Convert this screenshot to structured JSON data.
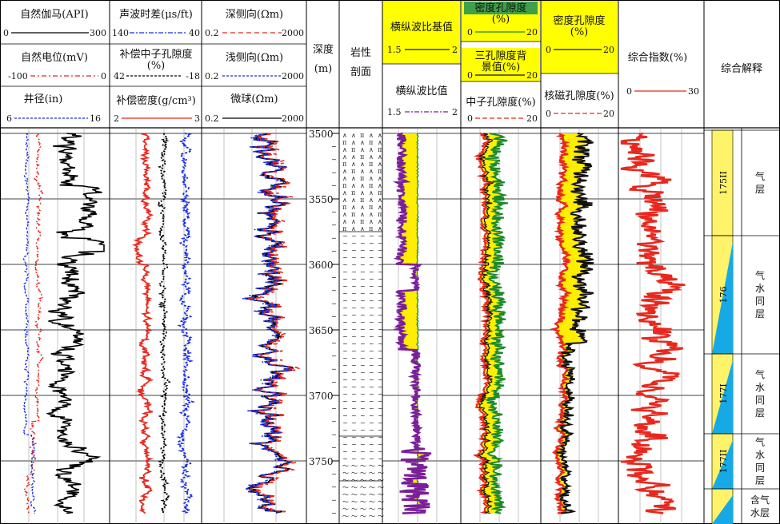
{
  "tracks": {
    "t1": {
      "curves": [
        {
          "label": "自然伽马(API)",
          "min": "0",
          "max": "300",
          "color": "#000000",
          "dash": ""
        },
        {
          "label": "自然电位(mV)",
          "min": "-100",
          "max": "0",
          "color": "#e8281e",
          "dash": "6,3,2,3"
        },
        {
          "label": "井径(in)",
          "min": "6",
          "max": "16",
          "color": "#1a2ee8",
          "dash": "3,2"
        }
      ]
    },
    "t2": {
      "curves": [
        {
          "label": "声波时差(μs/ft)",
          "min": "140",
          "max": "40",
          "color": "#1a2ee8",
          "dash": "6,2,2,2"
        },
        {
          "label_lines": [
            "补偿中子孔隙度",
            "(%)"
          ],
          "min": "42",
          "max": "-18",
          "color": "#000000",
          "dash": "3,2"
        },
        {
          "label": "补偿密度(g/cm³)",
          "min": "2",
          "max": "3",
          "color": "#e8281e",
          "dash": ""
        }
      ]
    },
    "t3": {
      "curves": [
        {
          "label": "深侧向(Ωm)",
          "min": "0.2",
          "max": "2000",
          "color": "#e8281e",
          "dash": "6,4"
        },
        {
          "label": "浅侧向(Ωm)",
          "min": "0.2",
          "max": "2000",
          "color": "#1a2ee8",
          "dash": "3,2"
        },
        {
          "label": "微球(Ωm)",
          "min": "0.2",
          "max": "2000",
          "color": "#000000",
          "dash": ""
        }
      ]
    },
    "depth": {
      "label": "深度",
      "unit": "(m)"
    },
    "lith": {
      "label_lines": [
        "岩性",
        "剖面"
      ]
    },
    "t4": {
      "curves": [
        {
          "label": "横纵波比基值",
          "min": "1.5",
          "max": "2",
          "color": "#111111",
          "dash": ""
        },
        {
          "label": "横纵波比值",
          "min": "1.5",
          "max": "2",
          "color": "#7a1f9a",
          "dash": "6,2,2,2"
        }
      ]
    },
    "t5": {
      "curves": [
        {
          "label_lines": [
            "密度孔隙度",
            "(%)"
          ],
          "min": "0",
          "max": "20",
          "color": "#1a8a2a",
          "dash": ""
        },
        {
          "label_lines": [
            "三孔隙度背",
            "景值(%)"
          ],
          "min": "0",
          "max": "20",
          "color": "#111111",
          "dash": ""
        },
        {
          "label": "中子孔隙度(%)",
          "min": "0",
          "max": "20",
          "color": "#e8281e",
          "dash": "6,3"
        }
      ]
    },
    "t6": {
      "curves": [
        {
          "label_lines": [
            "密度孔隙度",
            "(%)"
          ],
          "min": "0",
          "max": "20",
          "color": "#111111",
          "dash": ""
        },
        {
          "label": "核磁孔隙度(%)",
          "min": "0",
          "max": "20",
          "color": "#e8281e",
          "dash": "6,3"
        }
      ]
    },
    "t7": {
      "curves": [
        {
          "label": "综合指数(%)",
          "min": "0",
          "max": "30",
          "color": "#e8281e",
          "dash": ""
        }
      ]
    },
    "interp": {
      "label": "综合解释"
    }
  },
  "depth_ticks": [
    "3500",
    "3550",
    "3600",
    "3650",
    "3700",
    "3750"
  ],
  "zones": [
    {
      "number": "175II",
      "label_lines": [
        "气",
        "层"
      ]
    },
    {
      "number": "176",
      "label_lines": [
        "气",
        "水",
        "同",
        "层"
      ]
    },
    {
      "number": "177I",
      "label_lines": [
        "气",
        "水",
        "同",
        "层"
      ]
    },
    {
      "number": "177II",
      "label_lines": [
        "气",
        "水",
        "同",
        "层"
      ]
    },
    {
      "number": "",
      "label_lines": [
        "含气",
        "水层"
      ]
    }
  ],
  "colors": {
    "highlight_yellow": "#ffff00",
    "fill_yellow": "#ffee00",
    "zone_blue": "#17a9e6",
    "zone_yellow": "#fff36a"
  }
}
